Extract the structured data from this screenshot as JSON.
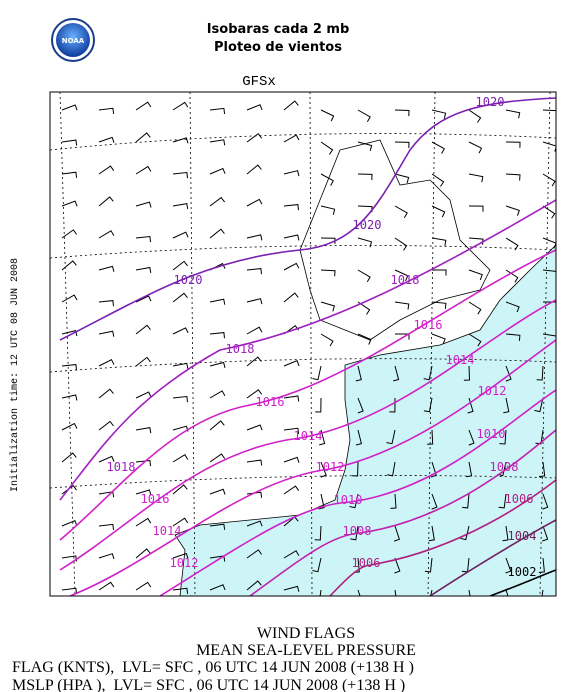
{
  "header": {
    "title": "Isobaras cada 2 mb",
    "subtitle": "Ploteo de vientos",
    "logo": "NOAA"
  },
  "map": {
    "model": "GFSx",
    "side_label": "Initialization time: 12 UTC 08 JUN 2008",
    "isobar_labels": [
      "1020",
      "1020",
      "1020",
      "1018",
      "1018",
      "1016",
      "1016",
      "1014",
      "1014",
      "1012",
      "1012",
      "1010",
      "1010",
      "1008",
      "1008",
      "1006",
      "1006",
      "1004",
      "1002",
      "1018",
      "1016",
      "1014",
      "1012"
    ]
  },
  "footer": {
    "lines": [
      "WIND FLAGS",
      "MEAN SEA-LEVEL PRESSURE",
      "FLAG (KNTS),  LVL= SFC , 06 UTC 14 JUN 2008 (+138 H )",
      "MSLP (HPA ),  LVL= SFC , 06 UTC 14 JUN 2008 (+138 H )"
    ]
  }
}
